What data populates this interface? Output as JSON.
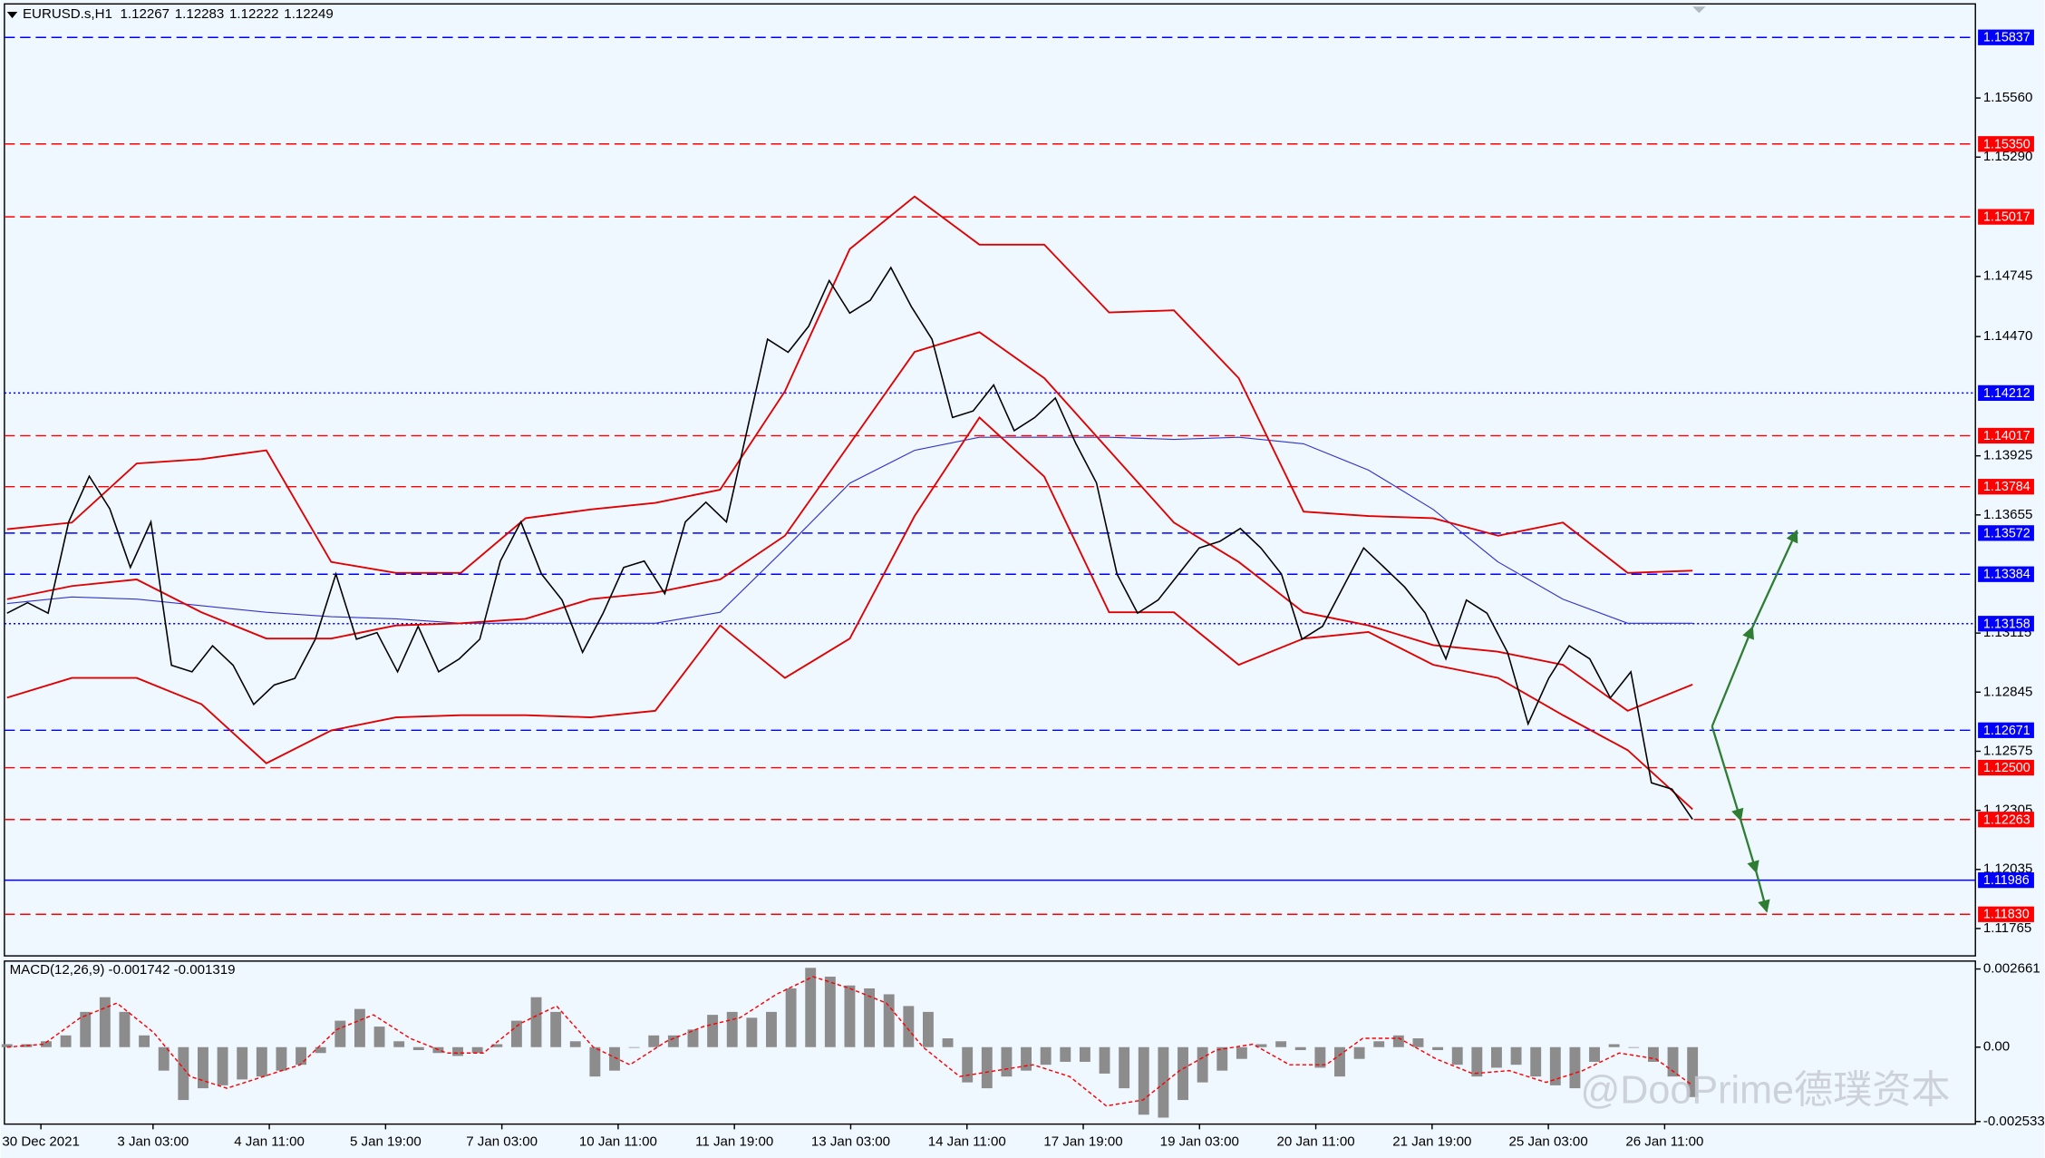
{
  "chart_data": [
    {
      "type": "line",
      "title": "EURUSD.s,H1",
      "ohlc": [
        1.12267,
        1.12283,
        1.12222,
        1.12249
      ],
      "ylim": [
        1.1164,
        1.1599
      ],
      "yticks": [
        {
          "value": 1.1556,
          "label": "1.15560"
        },
        {
          "value": 1.1529,
          "label": "1.15290"
        },
        1.14745,
        {
          "value": 1.1447,
          "label": "1.14470"
        },
        1.13925,
        1.13655,
        1.13115,
        1.12845,
        1.12575,
        1.12305,
        1.12035,
        1.11765
      ],
      "x_labels": [
        "30 Dec 2021",
        "3 Jan 03:00",
        "4 Jan 11:00",
        "5 Jan 19:00",
        "7 Jan 03:00",
        "10 Jan 11:00",
        "11 Jan 19:00",
        "13 Jan 03:00",
        "14 Jan 11:00",
        "17 Jan 19:00",
        "19 Jan 03:00",
        "20 Jan 11:00",
        "21 Jan 19:00",
        "25 Jan 03:00",
        "26 Jan 11:00"
      ],
      "levels": [
        {
          "value": 1.15837,
          "color": "#0000ff",
          "style": "dashed"
        },
        {
          "value": 1.1535,
          "label": "1.15350",
          "color": "#ff0000",
          "style": "dashed"
        },
        {
          "value": 1.15017,
          "color": "#ff0000",
          "style": "dashed"
        },
        {
          "value": 1.14212,
          "color": "#0000ff",
          "style": "dotted"
        },
        {
          "value": 1.14017,
          "color": "#ff0000",
          "style": "dashed"
        },
        {
          "value": 1.13784,
          "color": "#ff0000",
          "style": "dashed"
        },
        {
          "value": 1.13572,
          "color": "#0000ff",
          "style": "dashed"
        },
        {
          "value": 1.13384,
          "color": "#0000ff",
          "style": "dashed"
        },
        {
          "value": 1.13158,
          "color": "#0000ff",
          "style": "dotted"
        },
        {
          "value": 1.12671,
          "color": "#0000ff",
          "style": "dashed"
        },
        {
          "value": 1.125,
          "label": "1.12500",
          "color": "#ff0000",
          "style": "dashed"
        },
        {
          "value": 1.12263,
          "color": "#ff0000",
          "style": "dashed"
        },
        {
          "value": 1.11986,
          "color": "#0000ff",
          "style": "solid"
        },
        {
          "value": 1.1183,
          "label": "1.11830",
          "color": "#ff0000",
          "style": "dashed"
        }
      ],
      "series": [
        {
          "color": "#3333cc",
          "width": 0.8,
          "values": [
            1.1325,
            1.1328,
            1.1327,
            1.1324,
            1.1321,
            1.1319,
            1.1318,
            1.1316,
            1.1316,
            1.1316,
            1.1316,
            1.1321,
            1.135,
            1.138,
            1.1395,
            1.1401,
            1.1401,
            1.1401,
            1.14,
            1.1401,
            1.1398,
            1.1386,
            1.1368,
            1.1344,
            1.1327,
            1.1316,
            1.1316
          ]
        },
        {
          "color": "#e00000",
          "width": 1.3,
          "values": [
            1.1359,
            1.1362,
            1.1389,
            1.1391,
            1.1395,
            1.1344,
            1.1339,
            1.1339,
            1.1364,
            1.1368,
            1.1371,
            1.1377,
            1.1422,
            1.1487,
            1.1511,
            1.1489,
            1.1489,
            1.1458,
            1.1459,
            1.1428,
            1.1367,
            1.1365,
            1.1364,
            1.1356,
            1.1362,
            1.1339,
            1.134
          ]
        },
        {
          "color": "#e00000",
          "width": 1.3,
          "values": [
            1.1282,
            1.1291,
            1.1291,
            1.1279,
            1.1252,
            1.1267,
            1.1273,
            1.1274,
            1.1274,
            1.1273,
            1.1276,
            1.1315,
            1.1291,
            1.1309,
            1.1365,
            1.141,
            1.1383,
            1.1321,
            1.1321,
            1.1297,
            1.1309,
            1.1312,
            1.1297,
            1.1291,
            1.1274,
            1.1258,
            1.1231
          ]
        },
        {
          "color": "#e00000",
          "width": 1.3,
          "values": [
            1.1327,
            1.1333,
            1.1336,
            1.1321,
            1.1309,
            1.1309,
            1.1315,
            1.1316,
            1.1318,
            1.1327,
            1.133,
            1.1336,
            1.1356,
            1.1398,
            1.144,
            1.1449,
            1.1428,
            1.1395,
            1.1362,
            1.1344,
            1.1321,
            1.1315,
            1.1306,
            1.1303,
            1.1297,
            1.1276,
            1.1288
          ]
        },
        {
          "color": "#000000",
          "width": 1.1,
          "values": [
            1.13206,
            1.13254,
            1.13206,
            1.13623,
            1.13832,
            1.13683,
            1.13415,
            1.13623,
            1.12968,
            1.12938,
            1.13057,
            1.12968,
            1.12789,
            1.12878,
            1.12908,
            1.13087,
            1.13385,
            1.13087,
            1.13117,
            1.12938,
            1.13146,
            1.12938,
            1.12997,
            1.13087,
            1.13444,
            1.13623,
            1.13385,
            1.13266,
            1.13027,
            1.13206,
            1.13415,
            1.13444,
            1.13295,
            1.13623,
            1.13713,
            1.13623,
            1.1404,
            1.14458,
            1.14398,
            1.14517,
            1.14726,
            1.14577,
            1.14636,
            1.14785,
            1.14606,
            1.14458,
            1.141,
            1.1413,
            1.14249,
            1.1404,
            1.141,
            1.14189,
            1.13981,
            1.13802,
            1.13385,
            1.13206,
            1.13266,
            1.13385,
            1.13504,
            1.13534,
            1.13593,
            1.13504,
            1.13385,
            1.13087,
            1.13146,
            1.13325,
            1.13504,
            1.13415,
            1.13325,
            1.13206,
            1.12997,
            1.13266,
            1.13206,
            1.13027,
            1.127,
            1.12908,
            1.13057,
            1.12997,
            1.12819,
            1.12938,
            1.12431,
            1.12402,
            1.12264
          ]
        }
      ]
    },
    {
      "type": "bar",
      "title": "MACD(12,26,9) -0.001742 -0.001319",
      "ylim": [
        -0.00262,
        0.00293
      ],
      "yticks": [
        0.002661,
        {
          "value": 0,
          "label": "0.00"
        },
        -0.002533
      ],
      "series": [
        {
          "type": "bar",
          "color": "#8c8c8c",
          "values": [
            0.0001,
            0.0001,
            0.0002,
            0.0004,
            0.0012,
            0.0017,
            0.0012,
            0.0004,
            -0.0008,
            -0.0018,
            -0.0014,
            -0.0013,
            -0.0011,
            -0.001,
            -0.0008,
            -0.0006,
            -0.0002,
            0.0009,
            0.0013,
            0.0007,
            0.0002,
            -0.0001,
            -0.0002,
            -0.0003,
            -0.0002,
            0.0001,
            0.0009,
            0.0017,
            0.0012,
            0.0002,
            -0.001,
            -0.0008,
            0,
            0.0004,
            0.0004,
            0.0006,
            0.0011,
            0.0012,
            0.001,
            0.0012,
            0.002,
            0.0027,
            0.0024,
            0.0021,
            0.002,
            0.0018,
            0.0014,
            0.0012,
            0.0003,
            -0.0012,
            -0.0014,
            -0.001,
            -0.0008,
            -0.0006,
            -0.0005,
            -0.0005,
            -0.0009,
            -0.0014,
            -0.0023,
            -0.0024,
            -0.0018,
            -0.0012,
            -0.0008,
            -0.0004,
            0.0001,
            0.0002,
            -0.0001,
            -0.0007,
            -0.001,
            -0.0004,
            0.0002,
            0.0004,
            0.0003,
            -0.0001,
            -0.0006,
            -0.001,
            -0.0007,
            -0.0006,
            -0.001,
            -0.0013,
            -0.0014,
            -0.0005,
            0.0001,
            0,
            -0.0005,
            -0.001,
            -0.0017
          ]
        },
        {
          "type": "line",
          "color": "#ff0000",
          "values": [
            0,
            0.0001,
            0.001,
            0.0015,
            0.0005,
            -0.001,
            -0.0014,
            -0.001,
            -0.0006,
            0.0006,
            0.0011,
            0.0003,
            -0.0002,
            -0.0002,
            0.0008,
            0.0014,
            0,
            -0.0006,
            0.0002,
            0.0007,
            0.001,
            0.0018,
            0.0024,
            0.002,
            0.0015,
            0,
            -0.001,
            -0.0008,
            -0.0006,
            -0.001,
            -0.002,
            -0.0018,
            -0.0008,
            -0.0001,
            0.0001,
            -0.0006,
            -0.0006,
            0.0003,
            0.0003,
            -0.0004,
            -0.0009,
            -0.0008,
            -0.0012,
            -0.0008,
            -0.0002,
            -0.0004,
            -0.0013
          ]
        }
      ]
    }
  ],
  "watermark": "@DooPrime德璞资本"
}
